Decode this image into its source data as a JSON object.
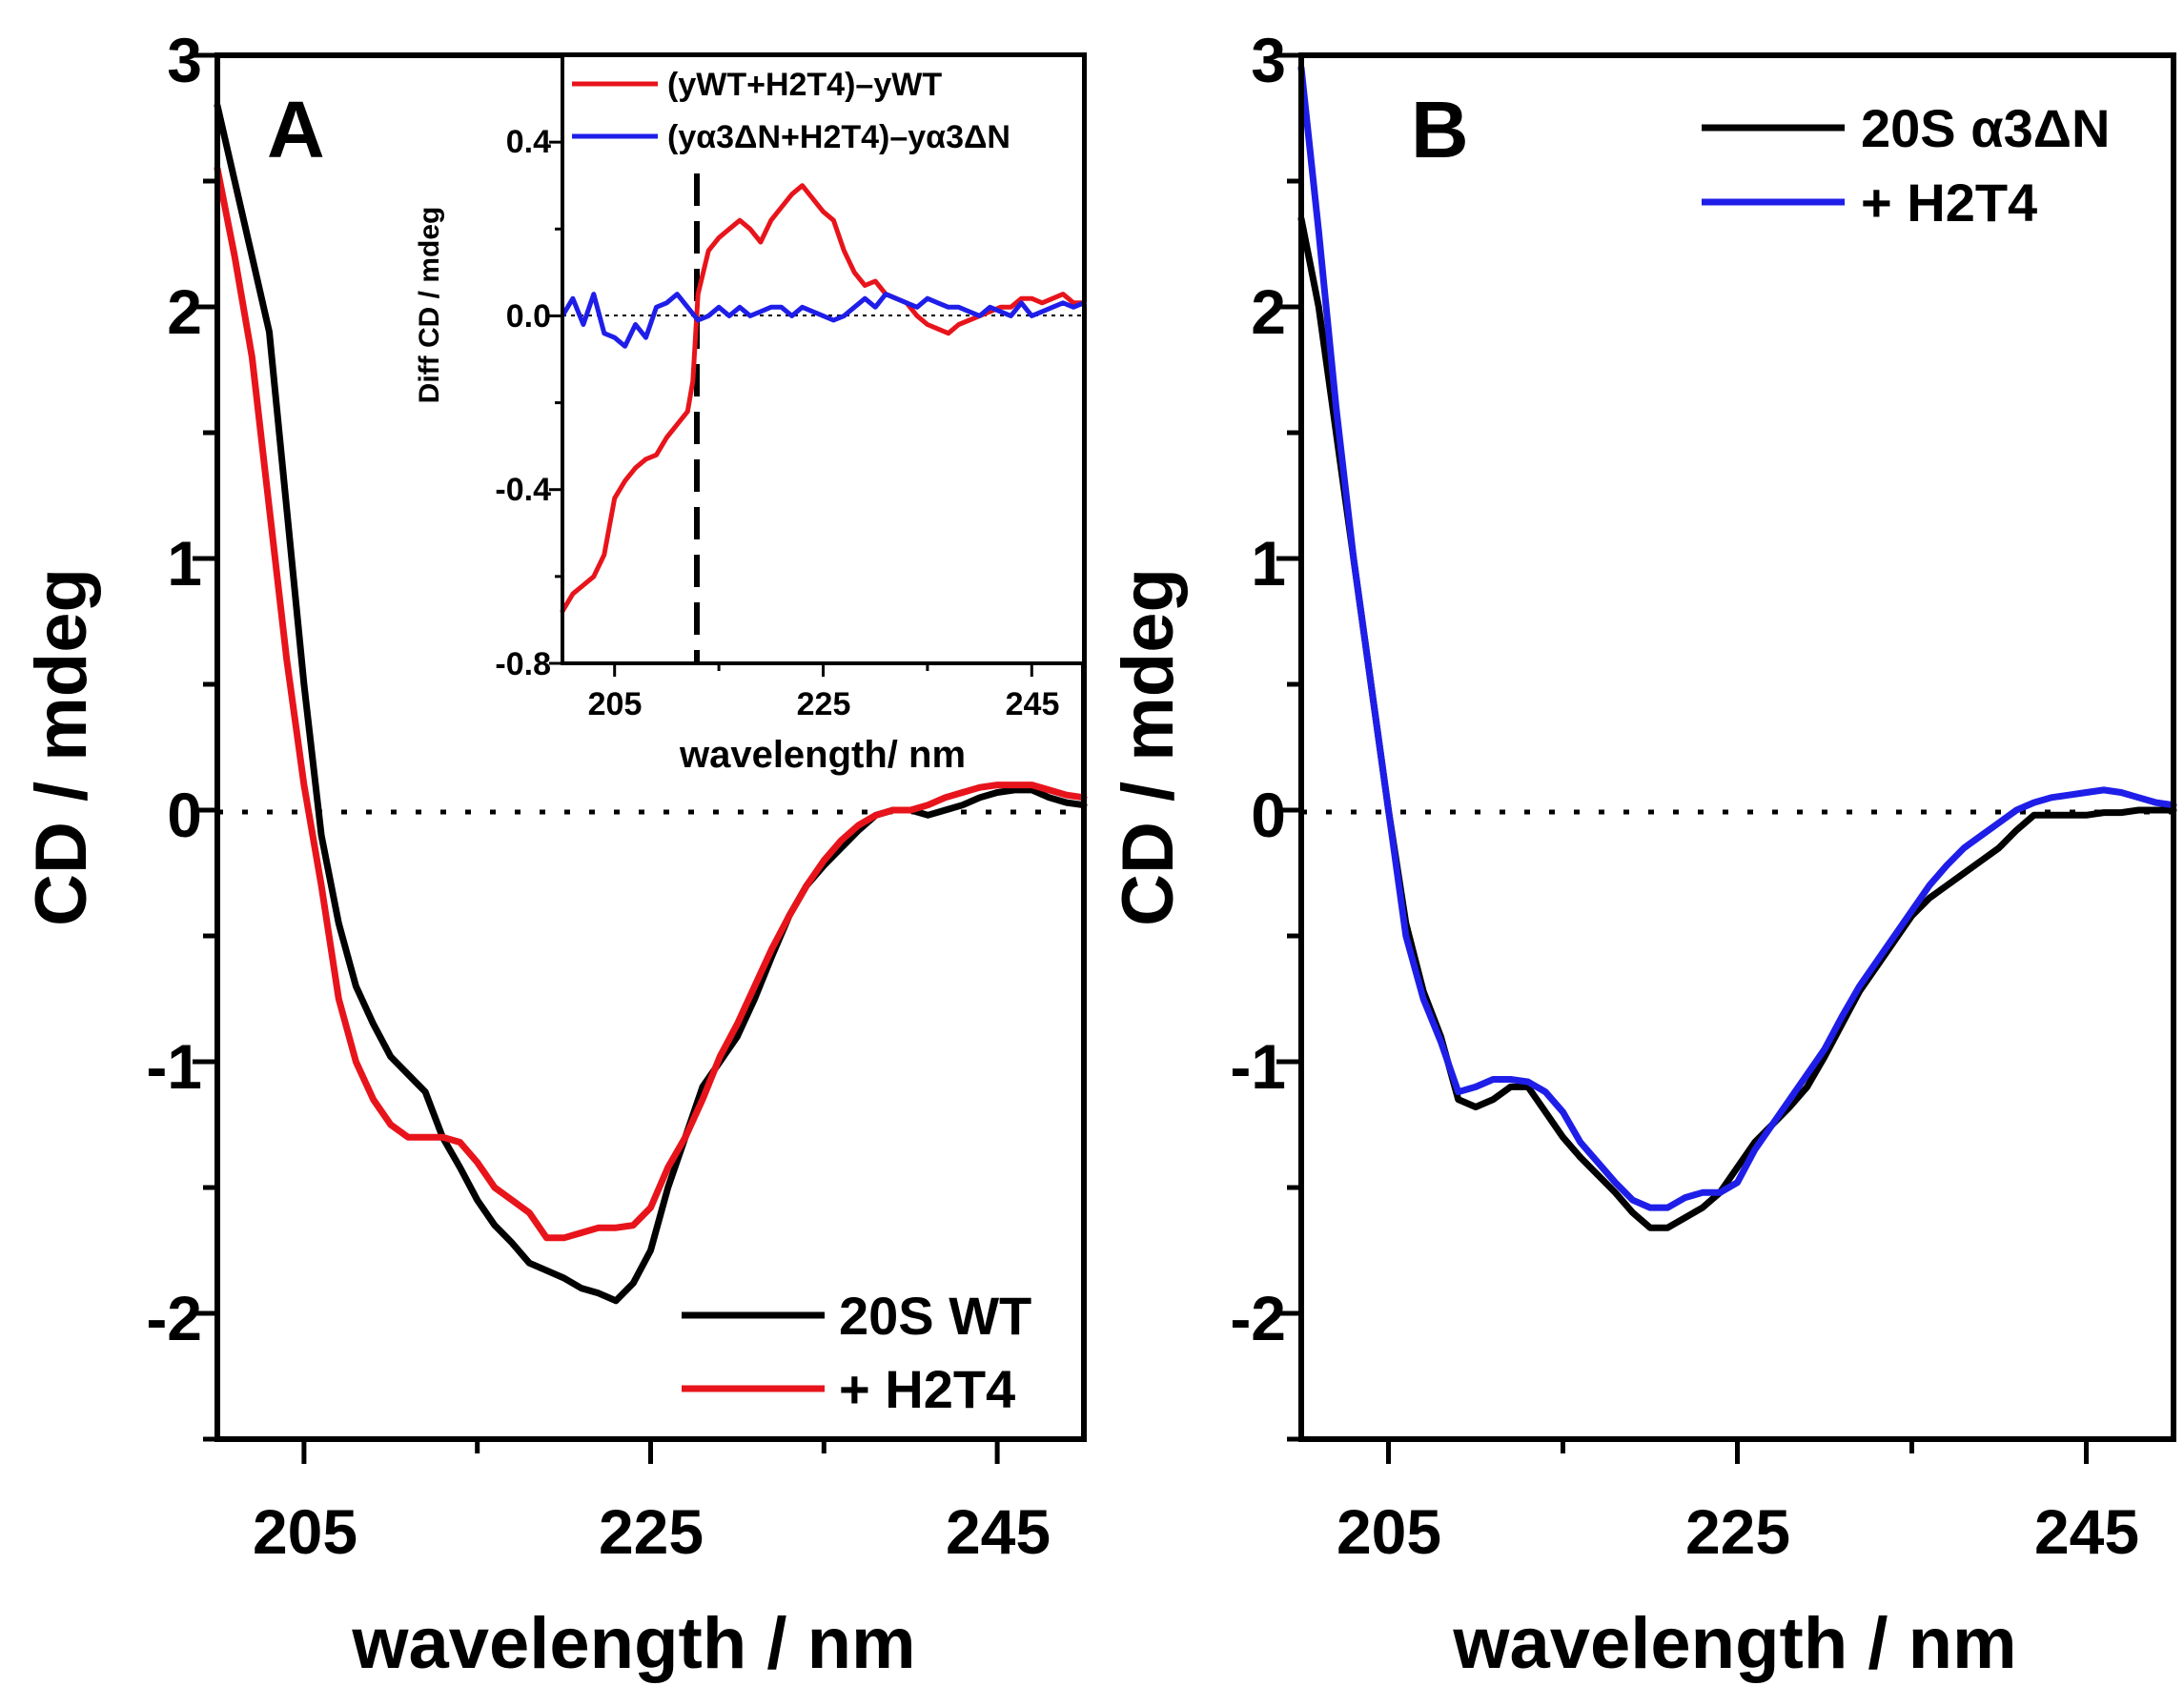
{
  "chart_data": [
    {
      "type": "line",
      "panel": "A",
      "xlabel": "wavelength / nm",
      "ylabel": "CD / mdeg",
      "xlim": [
        200,
        250
      ],
      "ylim": [
        -2.5,
        3
      ],
      "xticks": [
        205,
        225,
        245
      ],
      "yticks": [
        -2,
        -1,
        0,
        1,
        2,
        3
      ],
      "zero_line": "dotted",
      "legend_position": "bottom-right",
      "series": [
        {
          "name": "20S WT",
          "color": "#000000",
          "x": [
            200,
            201,
            202,
            203,
            204,
            205,
            206,
            207,
            208,
            209,
            210,
            211,
            212,
            213,
            214,
            215,
            216,
            217,
            218,
            219,
            220,
            221,
            222,
            223,
            224,
            225,
            226,
            227,
            228,
            229,
            230,
            231,
            232,
            233,
            234,
            235,
            236,
            237,
            238,
            239,
            240,
            241,
            242,
            243,
            244,
            245,
            246,
            247,
            248,
            249,
            250
          ],
          "y": [
            2.8,
            2.5,
            2.2,
            1.9,
            1.2,
            0.5,
            -0.1,
            -0.45,
            -0.7,
            -0.85,
            -0.98,
            -1.05,
            -1.12,
            -1.3,
            -1.42,
            -1.55,
            -1.65,
            -1.72,
            -1.8,
            -1.83,
            -1.86,
            -1.9,
            -1.92,
            -1.95,
            -1.88,
            -1.75,
            -1.5,
            -1.3,
            -1.1,
            -1.0,
            -0.9,
            -0.75,
            -0.58,
            -0.42,
            -0.3,
            -0.22,
            -0.15,
            -0.08,
            -0.02,
            0.0,
            0.0,
            -0.02,
            0.0,
            0.02,
            0.05,
            0.07,
            0.08,
            0.08,
            0.05,
            0.03,
            0.02
          ]
        },
        {
          "name": "+ H2T4",
          "color": "#e8141b",
          "x": [
            200,
            201,
            202,
            203,
            204,
            205,
            206,
            207,
            208,
            209,
            210,
            211,
            212,
            213,
            214,
            215,
            216,
            217,
            218,
            219,
            220,
            221,
            222,
            223,
            224,
            225,
            226,
            227,
            228,
            229,
            230,
            231,
            232,
            233,
            234,
            235,
            236,
            237,
            238,
            239,
            240,
            241,
            242,
            243,
            244,
            245,
            246,
            247,
            248,
            249,
            250
          ],
          "y": [
            2.55,
            2.2,
            1.8,
            1.2,
            0.6,
            0.1,
            -0.3,
            -0.75,
            -1.0,
            -1.15,
            -1.25,
            -1.3,
            -1.3,
            -1.3,
            -1.32,
            -1.4,
            -1.5,
            -1.55,
            -1.6,
            -1.7,
            -1.7,
            -1.68,
            -1.66,
            -1.66,
            -1.65,
            -1.58,
            -1.42,
            -1.3,
            -1.15,
            -0.98,
            -0.85,
            -0.7,
            -0.55,
            -0.42,
            -0.3,
            -0.2,
            -0.12,
            -0.06,
            -0.02,
            0.0,
            0.0,
            0.02,
            0.05,
            0.07,
            0.09,
            0.1,
            0.1,
            0.1,
            0.08,
            0.06,
            0.05
          ]
        }
      ],
      "legend": {
        "entries": [
          "20S WT",
          "+ H2T4"
        ]
      },
      "inset": {
        "xlabel": "wavelength/ nm",
        "ylabel": "Diff CD / mdeg",
        "xlim": [
          200,
          250
        ],
        "ylim": [
          -0.8,
          0.6
        ],
        "xticks": [
          205,
          225,
          245
        ],
        "yticks": [
          -0.8,
          -0.4,
          0.0,
          0.4
        ],
        "ytick_labels": [
          "-0.8",
          "-0.4",
          "0.0",
          "0.4"
        ],
        "dashed_vline_x": 212.5,
        "legend_position": "top",
        "series": [
          {
            "name": "(yWT+H2T4)–yWT",
            "color": "#e8141b",
            "x": [
              200,
              201,
              202,
              203,
              204,
              205,
              206,
              207,
              208,
              209,
              210,
              211,
              212,
              212.5,
              213,
              214,
              215,
              216,
              217,
              218,
              219,
              220,
              221,
              222,
              223,
              224,
              225,
              226,
              227,
              228,
              229,
              230,
              231,
              232,
              233,
              234,
              235,
              236,
              237,
              238,
              239,
              240,
              241,
              242,
              243,
              244,
              245,
              246,
              247,
              248,
              249,
              250
            ],
            "y": [
              -0.68,
              -0.64,
              -0.62,
              -0.6,
              -0.55,
              -0.42,
              -0.38,
              -0.35,
              -0.33,
              -0.32,
              -0.28,
              -0.25,
              -0.22,
              -0.15,
              0.05,
              0.15,
              0.18,
              0.2,
              0.22,
              0.2,
              0.17,
              0.22,
              0.25,
              0.28,
              0.3,
              0.27,
              0.24,
              0.22,
              0.15,
              0.1,
              0.07,
              0.08,
              0.05,
              0.04,
              0.03,
              0.0,
              -0.02,
              -0.03,
              -0.04,
              -0.02,
              -0.01,
              0.0,
              0.01,
              0.02,
              0.02,
              0.04,
              0.04,
              0.03,
              0.04,
              0.05,
              0.03,
              0.03
            ]
          },
          {
            "name": "(yα3ΔN+H2T4)–yα3ΔN",
            "color": "#1f1ee8",
            "x": [
              200,
              201,
              202,
              203,
              204,
              205,
              206,
              207,
              208,
              209,
              210,
              211,
              212,
              213,
              214,
              215,
              216,
              217,
              218,
              219,
              220,
              221,
              222,
              223,
              224,
              225,
              226,
              227,
              228,
              229,
              230,
              231,
              232,
              233,
              234,
              235,
              236,
              237,
              238,
              239,
              240,
              241,
              242,
              243,
              244,
              245,
              246,
              247,
              248,
              249,
              250
            ],
            "y": [
              0.0,
              0.04,
              -0.02,
              0.05,
              -0.04,
              -0.05,
              -0.07,
              -0.02,
              -0.05,
              0.02,
              0.03,
              0.05,
              0.02,
              -0.01,
              0.0,
              0.02,
              0.0,
              0.02,
              0.0,
              0.01,
              0.02,
              0.02,
              0.0,
              0.02,
              0.01,
              0.0,
              -0.01,
              0.0,
              0.02,
              0.04,
              0.02,
              0.05,
              0.04,
              0.03,
              0.02,
              0.04,
              0.03,
              0.02,
              0.02,
              0.01,
              0.0,
              0.02,
              0.01,
              0.0,
              0.03,
              0.0,
              0.01,
              0.02,
              0.03,
              0.02,
              0.03
            ]
          }
        ]
      }
    },
    {
      "type": "line",
      "panel": "B",
      "xlabel": "wavelength / nm",
      "ylabel": "CD / mdeg",
      "xlim": [
        200,
        250
      ],
      "ylim": [
        -2.5,
        3
      ],
      "xticks": [
        205,
        225,
        245
      ],
      "yticks": [
        -2,
        -1,
        0,
        1,
        2,
        3
      ],
      "zero_line": "dotted",
      "legend_position": "top-right",
      "series": [
        {
          "name": "20S α3ΔN",
          "color": "#000000",
          "x": [
            200,
            201,
            202,
            203,
            204,
            205,
            206,
            207,
            208,
            209,
            210,
            211,
            212,
            213,
            214,
            215,
            216,
            217,
            218,
            219,
            220,
            221,
            222,
            223,
            224,
            225,
            226,
            227,
            228,
            229,
            230,
            231,
            232,
            233,
            234,
            235,
            236,
            237,
            238,
            239,
            240,
            241,
            242,
            243,
            244,
            245,
            246,
            247,
            248,
            249,
            250
          ],
          "y": [
            2.35,
            2.0,
            1.5,
            1.0,
            0.5,
            0.0,
            -0.45,
            -0.72,
            -0.9,
            -1.15,
            -1.18,
            -1.15,
            -1.1,
            -1.1,
            -1.2,
            -1.3,
            -1.38,
            -1.45,
            -1.52,
            -1.6,
            -1.66,
            -1.66,
            -1.62,
            -1.58,
            -1.52,
            -1.42,
            -1.32,
            -1.25,
            -1.18,
            -1.1,
            -0.98,
            -0.85,
            -0.72,
            -0.62,
            -0.52,
            -0.42,
            -0.35,
            -0.3,
            -0.25,
            -0.2,
            -0.15,
            -0.08,
            -0.02,
            -0.02,
            -0.02,
            -0.02,
            -0.01,
            -0.01,
            0.0,
            0.0,
            0.0
          ]
        },
        {
          "name": "+ H2T4",
          "color": "#1f1ee8",
          "x": [
            200,
            201,
            202,
            203,
            204,
            205,
            206,
            207,
            208,
            209,
            210,
            211,
            212,
            213,
            214,
            215,
            216,
            217,
            218,
            219,
            220,
            221,
            222,
            223,
            224,
            225,
            226,
            227,
            228,
            229,
            230,
            231,
            232,
            233,
            234,
            235,
            236,
            237,
            238,
            239,
            240,
            241,
            242,
            243,
            244,
            245,
            246,
            247,
            248,
            249,
            250
          ],
          "y": [
            2.95,
            2.3,
            1.6,
            1.0,
            0.5,
            0.0,
            -0.5,
            -0.75,
            -0.92,
            -1.12,
            -1.1,
            -1.07,
            -1.07,
            -1.08,
            -1.12,
            -1.2,
            -1.32,
            -1.4,
            -1.48,
            -1.55,
            -1.58,
            -1.58,
            -1.54,
            -1.52,
            -1.52,
            -1.48,
            -1.35,
            -1.25,
            -1.15,
            -1.05,
            -0.95,
            -0.82,
            -0.7,
            -0.6,
            -0.5,
            -0.4,
            -0.3,
            -0.22,
            -0.15,
            -0.1,
            -0.05,
            0.0,
            0.03,
            0.05,
            0.06,
            0.07,
            0.08,
            0.07,
            0.05,
            0.03,
            0.02
          ]
        }
      ],
      "legend": {
        "entries": [
          "20S α3ΔN",
          "+ H2T4"
        ]
      }
    }
  ],
  "panels": {
    "a": {
      "letter": "A",
      "xlabel": "wavelength / nm",
      "ylabel": "CD / mdeg",
      "xticks": [
        "205",
        "225",
        "245"
      ],
      "yticks": [
        "-2",
        "-1",
        "0",
        "1",
        "2",
        "3"
      ],
      "legend": [
        "20S WT",
        "+ H2T4"
      ],
      "inset": {
        "xlabel": "wavelength/ nm",
        "ylabel": "Diff CD / mdeg",
        "xticks": [
          "205",
          "225",
          "245"
        ],
        "yticks": [
          "-0.8",
          "-0.4",
          "0.0",
          "0.4"
        ],
        "legend": [
          "(yWT+H2T4)–yWT",
          "(yα3ΔN+H2T4)–yα3ΔN"
        ]
      }
    },
    "b": {
      "letter": "B",
      "xlabel": "wavelength / nm",
      "ylabel": "CD / mdeg",
      "xticks": [
        "205",
        "225",
        "245"
      ],
      "yticks": [
        "-2",
        "-1",
        "0",
        "1",
        "2",
        "3"
      ],
      "legend": [
        "20S α3ΔN",
        "+ H2T4"
      ]
    }
  }
}
